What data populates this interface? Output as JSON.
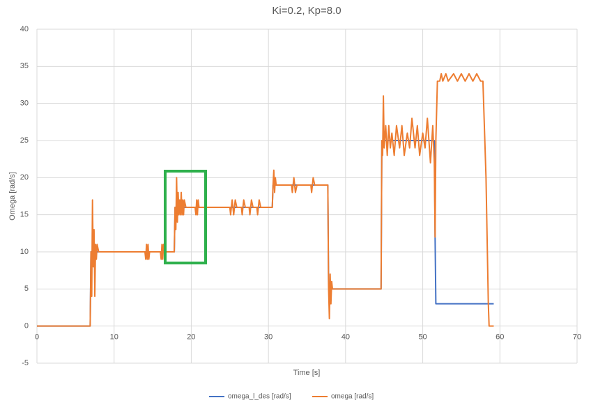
{
  "chart_data": {
    "type": "line",
    "title": "Ki=0.2, Kp=8.0",
    "x_label": "Time [s]",
    "y_label": "Omega [rad/s]",
    "x": [
      0,
      6.9,
      7.0,
      7.1,
      7.2,
      7.3,
      7.4,
      7.5,
      7.6,
      7.7,
      7.8,
      8,
      14,
      14.1,
      14.2,
      14.3,
      14.4,
      14.5,
      14.6,
      16,
      16.1,
      16.2,
      16.3,
      16.4,
      16.5,
      17.8,
      17.9,
      18.0,
      18.1,
      18.2,
      18.3,
      18.4,
      18.5,
      18.6,
      18.7,
      18.8,
      18.9,
      19.0,
      19.1,
      19.3,
      20.5,
      20.6,
      20.7,
      20.8,
      20.9,
      21,
      25,
      25.1,
      25.3,
      25.5,
      25.7,
      25.9,
      26.5,
      26.6,
      26.8,
      27,
      27.5,
      27.6,
      27.8,
      28,
      28.5,
      28.6,
      28.8,
      29,
      30.5,
      30.6,
      30.7,
      30.8,
      30.9,
      31,
      33,
      33.1,
      33.3,
      33.5,
      33.7,
      35.5,
      35.6,
      35.8,
      36,
      37.7,
      37.8,
      37.9,
      38.0,
      38.1,
      38.2,
      38.3,
      44.6,
      44.7,
      44.8,
      44.9,
      45.0,
      45.2,
      45.4,
      45.6,
      45.8,
      46,
      46.3,
      46.6,
      47,
      47.3,
      47.6,
      48,
      48.3,
      48.6,
      49,
      49.3,
      49.6,
      50,
      50.3,
      50.6,
      51,
      51.3,
      51.5,
      51.6,
      51.7,
      51.9,
      52.2,
      52.4,
      52.6,
      53,
      53.3,
      54,
      54.5,
      55,
      55.5,
      56,
      56.5,
      57,
      57.5,
      57.8,
      58.2,
      58.5,
      58.6,
      59.2
    ],
    "series": [
      {
        "name": "omega_l_des [rad/s]",
        "color": "#4472c4",
        "values": [
          0,
          0,
          10,
          10,
          10,
          10,
          10,
          10,
          10,
          10,
          10,
          10,
          10,
          10,
          10,
          10,
          10,
          10,
          10,
          10,
          10,
          10,
          10,
          10,
          10,
          10,
          16,
          16,
          16,
          16,
          16,
          16,
          16,
          16,
          16,
          16,
          16,
          16,
          16,
          16,
          16,
          16,
          16,
          16,
          16,
          16,
          16,
          16,
          16,
          16,
          16,
          16,
          16,
          16,
          16,
          16,
          16,
          16,
          16,
          16,
          16,
          16,
          16,
          16,
          16,
          19,
          19,
          19,
          19,
          19,
          19,
          19,
          19,
          19,
          19,
          19,
          19,
          19,
          19,
          19,
          5,
          5,
          5,
          5,
          5,
          5,
          5,
          25,
          25,
          25,
          25,
          25,
          25,
          25,
          25,
          25,
          25,
          25,
          25,
          25,
          25,
          25,
          25,
          25,
          25,
          25,
          25,
          25,
          25,
          25,
          25,
          25,
          25,
          12,
          3,
          3,
          3,
          3,
          3,
          3,
          3,
          3,
          3,
          3,
          3,
          3,
          3,
          3,
          3,
          3,
          3,
          3,
          3,
          3
        ]
      },
      {
        "name": "omega [rad/s]",
        "color": "#ed7d31",
        "values": [
          0,
          0,
          10,
          4,
          17,
          8,
          13,
          4,
          11,
          9,
          11,
          10,
          10,
          9,
          11,
          9,
          11,
          9,
          10,
          10,
          9,
          11,
          9,
          11,
          10,
          10,
          16,
          13,
          20,
          14,
          18,
          15,
          17,
          15,
          18,
          15,
          17,
          15,
          17,
          16,
          16,
          15,
          17,
          15,
          17,
          16,
          16,
          15,
          17,
          15,
          17,
          16,
          16,
          15,
          17,
          16,
          16,
          15,
          17,
          16,
          16,
          15,
          17,
          16,
          16,
          19,
          21,
          18,
          20,
          19,
          19,
          18,
          20,
          18,
          19,
          19,
          18,
          20,
          19,
          19,
          5,
          1,
          7,
          3,
          6,
          5,
          5,
          25,
          23,
          31,
          24,
          27,
          23,
          27,
          24,
          26,
          23,
          27,
          24,
          27,
          23,
          26,
          24,
          28,
          24,
          27,
          23,
          26,
          24,
          28,
          22,
          27,
          22,
          12,
          25,
          33,
          33,
          34,
          33,
          34,
          33,
          34,
          33,
          34,
          33,
          34,
          33,
          34,
          33,
          33,
          20,
          3,
          0,
          0
        ]
      }
    ],
    "xlim": [
      0,
      70
    ],
    "xticks": [
      0,
      10,
      20,
      30,
      40,
      50,
      60,
      70
    ],
    "ylim": [
      -5,
      40
    ],
    "yticks": [
      -5,
      0,
      5,
      10,
      15,
      20,
      25,
      30,
      35,
      40
    ],
    "grid": true,
    "legend": "bottom"
  }
}
